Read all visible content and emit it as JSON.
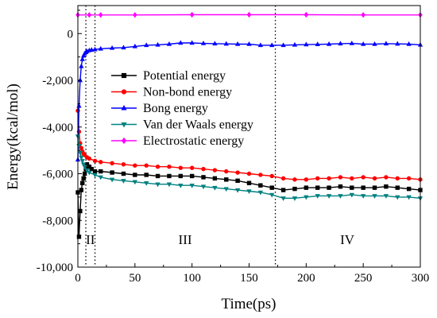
{
  "chart_data": {
    "type": "line",
    "xlabel": "Time(ps)",
    "ylabel": "Energy(kcal/mol)",
    "xlim": [
      0,
      300
    ],
    "ylim": [
      -10000,
      1200
    ],
    "xticks": [
      0,
      50,
      100,
      150,
      200,
      250,
      300
    ],
    "xtick_labels": [
      "0",
      "50",
      "100",
      "150",
      "200",
      "250",
      "300"
    ],
    "yticks": [
      -10000,
      -8000,
      -6000,
      -4000,
      -2000,
      0
    ],
    "ytick_labels": [
      "-10,000",
      "-8,000",
      "-6,000",
      "-4,000",
      "-2,000",
      "0"
    ],
    "grid": false,
    "legend_position": "center-left",
    "vlines": [
      7,
      15,
      173
    ],
    "regions": [
      {
        "label": "II",
        "x": 11
      },
      {
        "label": "III",
        "x": 94
      },
      {
        "label": "IV",
        "x": 236
      }
    ],
    "series": [
      {
        "name": "Potential energy",
        "color": "#000000",
        "marker": "square",
        "x": [
          0,
          1,
          2,
          3,
          4,
          5,
          6,
          7,
          8,
          10,
          12,
          15,
          20,
          30,
          40,
          50,
          60,
          70,
          80,
          90,
          100,
          110,
          120,
          130,
          140,
          150,
          160,
          170,
          180,
          190,
          200,
          210,
          220,
          230,
          240,
          250,
          260,
          270,
          280,
          290,
          300
        ],
        "y": [
          -6800,
          -8700,
          -7600,
          -6700,
          -6400,
          -6200,
          -6000,
          -5800,
          -5600,
          -5700,
          -5800,
          -5900,
          -5900,
          -5950,
          -6000,
          -6050,
          -6050,
          -6100,
          -6100,
          -6100,
          -6100,
          -6150,
          -6200,
          -6250,
          -6300,
          -6400,
          -6500,
          -6600,
          -6700,
          -6650,
          -6600,
          -6600,
          -6600,
          -6550,
          -6600,
          -6600,
          -6600,
          -6550,
          -6600,
          -6650,
          -6700
        ]
      },
      {
        "name": "Non-bond energy",
        "color": "#ff0000",
        "marker": "circle",
        "x": [
          0,
          1,
          2,
          3,
          4,
          5,
          6,
          8,
          10,
          15,
          20,
          30,
          40,
          50,
          60,
          70,
          80,
          90,
          100,
          110,
          120,
          130,
          140,
          150,
          160,
          170,
          180,
          190,
          200,
          210,
          220,
          230,
          240,
          250,
          260,
          270,
          280,
          290,
          300
        ],
        "y": [
          -3300,
          -4200,
          -4700,
          -4900,
          -5050,
          -5150,
          -5200,
          -5300,
          -5350,
          -5450,
          -5500,
          -5550,
          -5600,
          -5650,
          -5650,
          -5700,
          -5700,
          -5750,
          -5750,
          -5800,
          -5850,
          -5900,
          -5950,
          -6000,
          -6050,
          -6100,
          -6200,
          -6250,
          -6250,
          -6200,
          -6200,
          -6150,
          -6200,
          -6150,
          -6200,
          -6150,
          -6200,
          -6200,
          -6250
        ]
      },
      {
        "name": "Bong energy",
        "color": "#0000ff",
        "marker": "triangle-up",
        "x": [
          0,
          1,
          2,
          3,
          4,
          5,
          6,
          7,
          8,
          10,
          12,
          15,
          20,
          30,
          40,
          50,
          60,
          70,
          80,
          90,
          100,
          110,
          120,
          130,
          140,
          150,
          160,
          170,
          180,
          190,
          200,
          210,
          220,
          230,
          240,
          250,
          260,
          270,
          280,
          290,
          300
        ],
        "y": [
          -5400,
          -3100,
          -2000,
          -1400,
          -1100,
          -950,
          -850,
          -800,
          -760,
          -720,
          -700,
          -680,
          -650,
          -620,
          -600,
          -550,
          -500,
          -480,
          -450,
          -400,
          -400,
          -420,
          -430,
          -440,
          -450,
          -450,
          -500,
          -500,
          -500,
          -480,
          -470,
          -460,
          -450,
          -430,
          -420,
          -450,
          -450,
          -430,
          -440,
          -450,
          -480
        ]
      },
      {
        "name": "Van der Waals energy",
        "color": "#008080",
        "marker": "triangle-down",
        "x": [
          0,
          1,
          2,
          3,
          4,
          5,
          6,
          8,
          10,
          15,
          20,
          30,
          40,
          50,
          60,
          70,
          80,
          90,
          100,
          110,
          120,
          130,
          140,
          150,
          160,
          170,
          180,
          190,
          200,
          210,
          220,
          230,
          240,
          250,
          260,
          270,
          280,
          290,
          300
        ],
        "y": [
          -4400,
          -4800,
          -5100,
          -5300,
          -5450,
          -5600,
          -5700,
          -5850,
          -5950,
          -6050,
          -6150,
          -6250,
          -6300,
          -6350,
          -6400,
          -6450,
          -6450,
          -6500,
          -6500,
          -6550,
          -6600,
          -6650,
          -6700,
          -6750,
          -6800,
          -6900,
          -7050,
          -7050,
          -7000,
          -6950,
          -6950,
          -6950,
          -6900,
          -6950,
          -6950,
          -6950,
          -7000,
          -7000,
          -7050
        ]
      },
      {
        "name": "Electrostatic energy",
        "color": "#ff00ff",
        "marker": "diamond",
        "x": [
          0,
          10,
          20,
          50,
          100,
          150,
          200,
          250,
          300
        ],
        "y": [
          800,
          800,
          800,
          800,
          810,
          810,
          810,
          800,
          800
        ]
      }
    ]
  }
}
